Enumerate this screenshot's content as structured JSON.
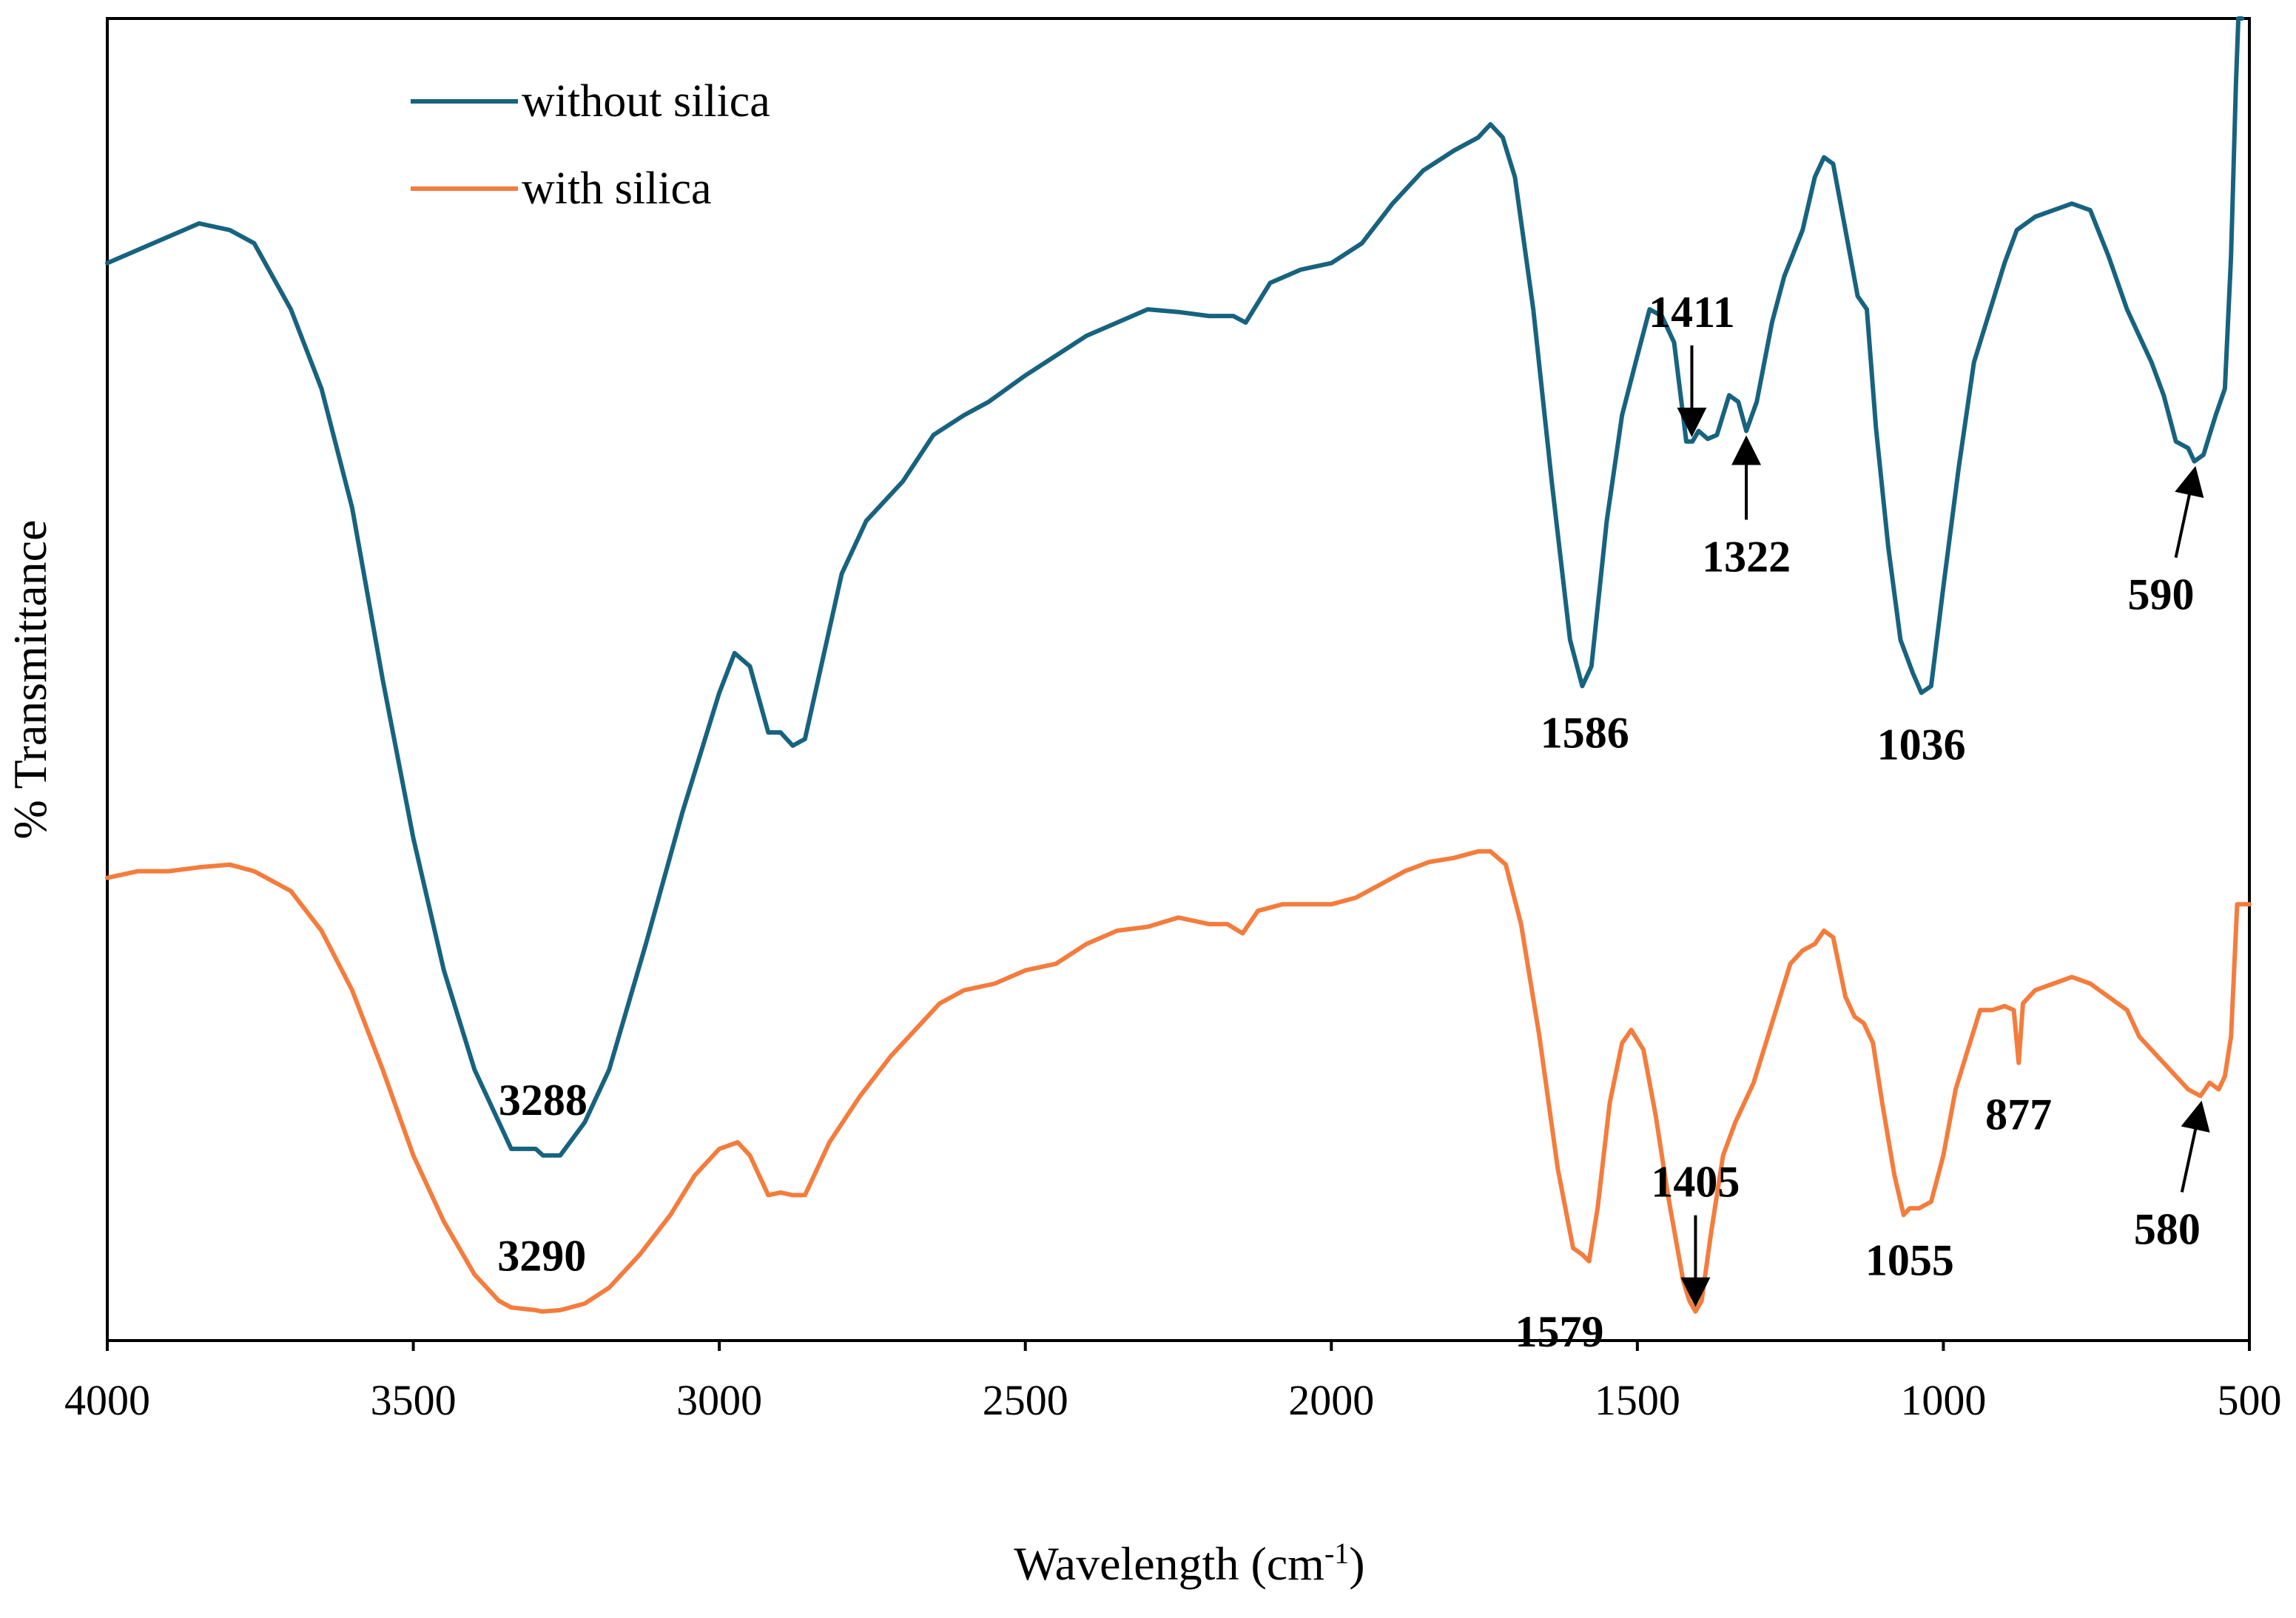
{
  "chart_data": {
    "type": "line",
    "title": "",
    "xlabel": "Wavelength (cm",
    "xlabel_sup": "-1",
    "xlabel_close": ")",
    "ylabel": "% Transmittance",
    "xlim": [
      4000,
      500
    ],
    "ylim": [
      0,
      100
    ],
    "x_ticks": [
      4000,
      3500,
      3000,
      2500,
      2000,
      1500,
      1000,
      500
    ],
    "x_tick_labels": [
      "4000",
      "3500",
      "3000",
      "2500",
      "2000",
      "1500",
      "1000",
      "500"
    ],
    "y_ticks_shown": false,
    "legend_position": "top-left",
    "colors": {
      "without": "#17637f",
      "with": "#f47c3c"
    },
    "series": [
      {
        "name": "without silica",
        "color": "#17637f",
        "points": [
          [
            4000,
            81.5
          ],
          [
            3950,
            82.5
          ],
          [
            3900,
            83.5
          ],
          [
            3850,
            84.5
          ],
          [
            3800,
            84.0
          ],
          [
            3760,
            83.0
          ],
          [
            3700,
            78.0
          ],
          [
            3650,
            72.0
          ],
          [
            3600,
            63.0
          ],
          [
            3550,
            50.0
          ],
          [
            3500,
            38.0
          ],
          [
            3450,
            28.0
          ],
          [
            3400,
            20.5
          ],
          [
            3360,
            16.5
          ],
          [
            3340,
            14.5
          ],
          [
            3300,
            14.5
          ],
          [
            3288,
            14.0
          ],
          [
            3260,
            14.0
          ],
          [
            3220,
            16.5
          ],
          [
            3180,
            20.5
          ],
          [
            3120,
            30.0
          ],
          [
            3060,
            40.0
          ],
          [
            3000,
            49.0
          ],
          [
            2975,
            52.0
          ],
          [
            2950,
            51.0
          ],
          [
            2920,
            46.0
          ],
          [
            2900,
            46.0
          ],
          [
            2880,
            45.0
          ],
          [
            2860,
            45.5
          ],
          [
            2800,
            58.0
          ],
          [
            2760,
            62.0
          ],
          [
            2700,
            65.0
          ],
          [
            2650,
            68.5
          ],
          [
            2600,
            70.0
          ],
          [
            2560,
            71.0
          ],
          [
            2500,
            73.0
          ],
          [
            2450,
            74.5
          ],
          [
            2400,
            76.0
          ],
          [
            2350,
            77.0
          ],
          [
            2300,
            78.0
          ],
          [
            2250,
            77.8
          ],
          [
            2200,
            77.5
          ],
          [
            2160,
            77.5
          ],
          [
            2140,
            77.0
          ],
          [
            2100,
            80.0
          ],
          [
            2050,
            81.0
          ],
          [
            2000,
            81.5
          ],
          [
            1950,
            83.0
          ],
          [
            1900,
            86.0
          ],
          [
            1850,
            88.5
          ],
          [
            1800,
            90.0
          ],
          [
            1760,
            91.0
          ],
          [
            1740,
            92.0
          ],
          [
            1720,
            91.0
          ],
          [
            1700,
            88.0
          ],
          [
            1670,
            78.0
          ],
          [
            1640,
            65.0
          ],
          [
            1610,
            53.0
          ],
          [
            1590,
            49.5
          ],
          [
            1575,
            51.0
          ],
          [
            1550,
            62.0
          ],
          [
            1525,
            70.0
          ],
          [
            1500,
            74.5
          ],
          [
            1480,
            78.0
          ],
          [
            1460,
            77.5
          ],
          [
            1440,
            75.5
          ],
          [
            1420,
            68.0
          ],
          [
            1410,
            68.0
          ],
          [
            1400,
            68.8
          ],
          [
            1385,
            68.2
          ],
          [
            1370,
            68.5
          ],
          [
            1350,
            71.5
          ],
          [
            1335,
            71.0
          ],
          [
            1322,
            68.8
          ],
          [
            1305,
            71.0
          ],
          [
            1280,
            77.0
          ],
          [
            1260,
            80.5
          ],
          [
            1230,
            84.0
          ],
          [
            1210,
            88.0
          ],
          [
            1195,
            89.5
          ],
          [
            1180,
            89.0
          ],
          [
            1160,
            84.0
          ],
          [
            1140,
            79.0
          ],
          [
            1125,
            78.0
          ],
          [
            1110,
            69.0
          ],
          [
            1090,
            60.0
          ],
          [
            1070,
            53.0
          ],
          [
            1050,
            50.5
          ],
          [
            1036,
            49.0
          ],
          [
            1020,
            49.5
          ],
          [
            1000,
            57.0
          ],
          [
            975,
            66.0
          ],
          [
            950,
            74.0
          ],
          [
            920,
            78.5
          ],
          [
            900,
            81.5
          ],
          [
            880,
            84.0
          ],
          [
            850,
            85.0
          ],
          [
            820,
            85.5
          ],
          [
            790,
            86.0
          ],
          [
            760,
            85.5
          ],
          [
            730,
            82.0
          ],
          [
            700,
            78.0
          ],
          [
            680,
            76.0
          ],
          [
            660,
            74.0
          ],
          [
            640,
            71.5
          ],
          [
            620,
            68.0
          ],
          [
            600,
            67.5
          ],
          [
            590,
            66.5
          ],
          [
            575,
            67.0
          ],
          [
            565,
            68.5
          ],
          [
            555,
            70.0
          ],
          [
            540,
            72.0
          ],
          [
            530,
            82.0
          ],
          [
            522,
            95.0
          ],
          [
            518,
            100
          ],
          [
            512,
            100
          ]
        ]
      },
      {
        "name": "with silica",
        "color": "#f47c3c",
        "points": [
          [
            4000,
            35.0
          ],
          [
            3950,
            35.5
          ],
          [
            3900,
            35.5
          ],
          [
            3850,
            35.8
          ],
          [
            3800,
            36.0
          ],
          [
            3760,
            35.5
          ],
          [
            3700,
            34.0
          ],
          [
            3650,
            31.0
          ],
          [
            3600,
            26.5
          ],
          [
            3550,
            20.5
          ],
          [
            3500,
            14.0
          ],
          [
            3450,
            9.0
          ],
          [
            3400,
            5.0
          ],
          [
            3360,
            3.0
          ],
          [
            3340,
            2.5
          ],
          [
            3300,
            2.3
          ],
          [
            3290,
            2.2
          ],
          [
            3260,
            2.3
          ],
          [
            3220,
            2.8
          ],
          [
            3180,
            4.0
          ],
          [
            3130,
            6.5
          ],
          [
            3080,
            9.5
          ],
          [
            3040,
            12.5
          ],
          [
            3000,
            14.5
          ],
          [
            2970,
            15.0
          ],
          [
            2950,
            14.0
          ],
          [
            2920,
            11.0
          ],
          [
            2900,
            11.2
          ],
          [
            2880,
            11.0
          ],
          [
            2860,
            11.0
          ],
          [
            2820,
            15.0
          ],
          [
            2770,
            18.5
          ],
          [
            2720,
            21.5
          ],
          [
            2680,
            23.5
          ],
          [
            2640,
            25.5
          ],
          [
            2600,
            26.5
          ],
          [
            2550,
            27.0
          ],
          [
            2500,
            28.0
          ],
          [
            2450,
            28.5
          ],
          [
            2400,
            30.0
          ],
          [
            2350,
            31.0
          ],
          [
            2300,
            31.3
          ],
          [
            2250,
            32.0
          ],
          [
            2200,
            31.5
          ],
          [
            2170,
            31.5
          ],
          [
            2145,
            30.8
          ],
          [
            2120,
            32.5
          ],
          [
            2080,
            33.0
          ],
          [
            2040,
            33.0
          ],
          [
            2000,
            33.0
          ],
          [
            1960,
            33.5
          ],
          [
            1920,
            34.5
          ],
          [
            1880,
            35.5
          ],
          [
            1840,
            36.2
          ],
          [
            1800,
            36.5
          ],
          [
            1760,
            37.0
          ],
          [
            1740,
            37.0
          ],
          [
            1715,
            36.0
          ],
          [
            1690,
            31.5
          ],
          [
            1660,
            23.0
          ],
          [
            1630,
            13.0
          ],
          [
            1605,
            7.0
          ],
          [
            1590,
            6.5
          ],
          [
            1579,
            6.0
          ],
          [
            1565,
            10.0
          ],
          [
            1545,
            18.0
          ],
          [
            1525,
            22.5
          ],
          [
            1510,
            23.5
          ],
          [
            1490,
            22.0
          ],
          [
            1470,
            17.0
          ],
          [
            1450,
            11.0
          ],
          [
            1425,
            4.5
          ],
          [
            1415,
            3.0
          ],
          [
            1405,
            2.2
          ],
          [
            1395,
            3.0
          ],
          [
            1380,
            8.0
          ],
          [
            1360,
            14.0
          ],
          [
            1340,
            16.5
          ],
          [
            1310,
            19.5
          ],
          [
            1280,
            24.0
          ],
          [
            1250,
            28.5
          ],
          [
            1230,
            29.5
          ],
          [
            1210,
            30.0
          ],
          [
            1195,
            31.0
          ],
          [
            1180,
            30.5
          ],
          [
            1160,
            26.0
          ],
          [
            1145,
            24.5
          ],
          [
            1130,
            24.0
          ],
          [
            1115,
            22.5
          ],
          [
            1100,
            18.0
          ],
          [
            1080,
            12.5
          ],
          [
            1065,
            9.5
          ],
          [
            1055,
            10.0
          ],
          [
            1040,
            10.0
          ],
          [
            1020,
            10.5
          ],
          [
            1000,
            14.0
          ],
          [
            980,
            19.0
          ],
          [
            960,
            22.0
          ],
          [
            940,
            25.0
          ],
          [
            920,
            25.0
          ],
          [
            900,
            25.3
          ],
          [
            885,
            25.0
          ],
          [
            877,
            21.0
          ],
          [
            870,
            25.5
          ],
          [
            850,
            26.5
          ],
          [
            820,
            27.0
          ],
          [
            790,
            27.5
          ],
          [
            760,
            27.0
          ],
          [
            730,
            26.0
          ],
          [
            700,
            25.0
          ],
          [
            680,
            23.0
          ],
          [
            650,
            21.5
          ],
          [
            620,
            20.0
          ],
          [
            600,
            19.0
          ],
          [
            580,
            18.5
          ],
          [
            565,
            19.5
          ],
          [
            550,
            19.0
          ],
          [
            540,
            20.0
          ],
          [
            530,
            23.0
          ],
          [
            520,
            33.0
          ],
          [
            515,
            33.0
          ],
          [
            500,
            33.0
          ]
        ]
      }
    ],
    "annotations": [
      {
        "series": "without silica",
        "x": 3288,
        "label": "3288",
        "arrow": false,
        "placement": "above"
      },
      {
        "series": "without silica",
        "x": 1586,
        "label": "1586",
        "arrow": false,
        "placement": "below"
      },
      {
        "series": "without silica",
        "x": 1036,
        "label": "1036",
        "arrow": false,
        "placement": "below"
      },
      {
        "series": "without silica",
        "x": 1411,
        "label": "1411",
        "arrow": true,
        "placement": "above"
      },
      {
        "series": "without silica",
        "x": 1322,
        "label": "1322",
        "arrow": true,
        "placement": "below"
      },
      {
        "series": "without silica",
        "x": 590,
        "label": "590",
        "arrow": true,
        "placement": "below-left"
      },
      {
        "series": "with silica",
        "x": 3290,
        "label": "3290",
        "arrow": false,
        "placement": "above"
      },
      {
        "series": "with silica",
        "x": 1579,
        "label": "1579",
        "arrow": false,
        "placement": "below-left"
      },
      {
        "series": "with silica",
        "x": 1405,
        "label": "1405",
        "arrow": true,
        "placement": "above"
      },
      {
        "series": "with silica",
        "x": 1055,
        "label": "1055",
        "arrow": false,
        "placement": "below"
      },
      {
        "series": "with silica",
        "x": 877,
        "label": "877",
        "arrow": false,
        "placement": "below"
      },
      {
        "series": "with silica",
        "x": 580,
        "label": "580",
        "arrow": true,
        "placement": "below-left"
      }
    ]
  }
}
